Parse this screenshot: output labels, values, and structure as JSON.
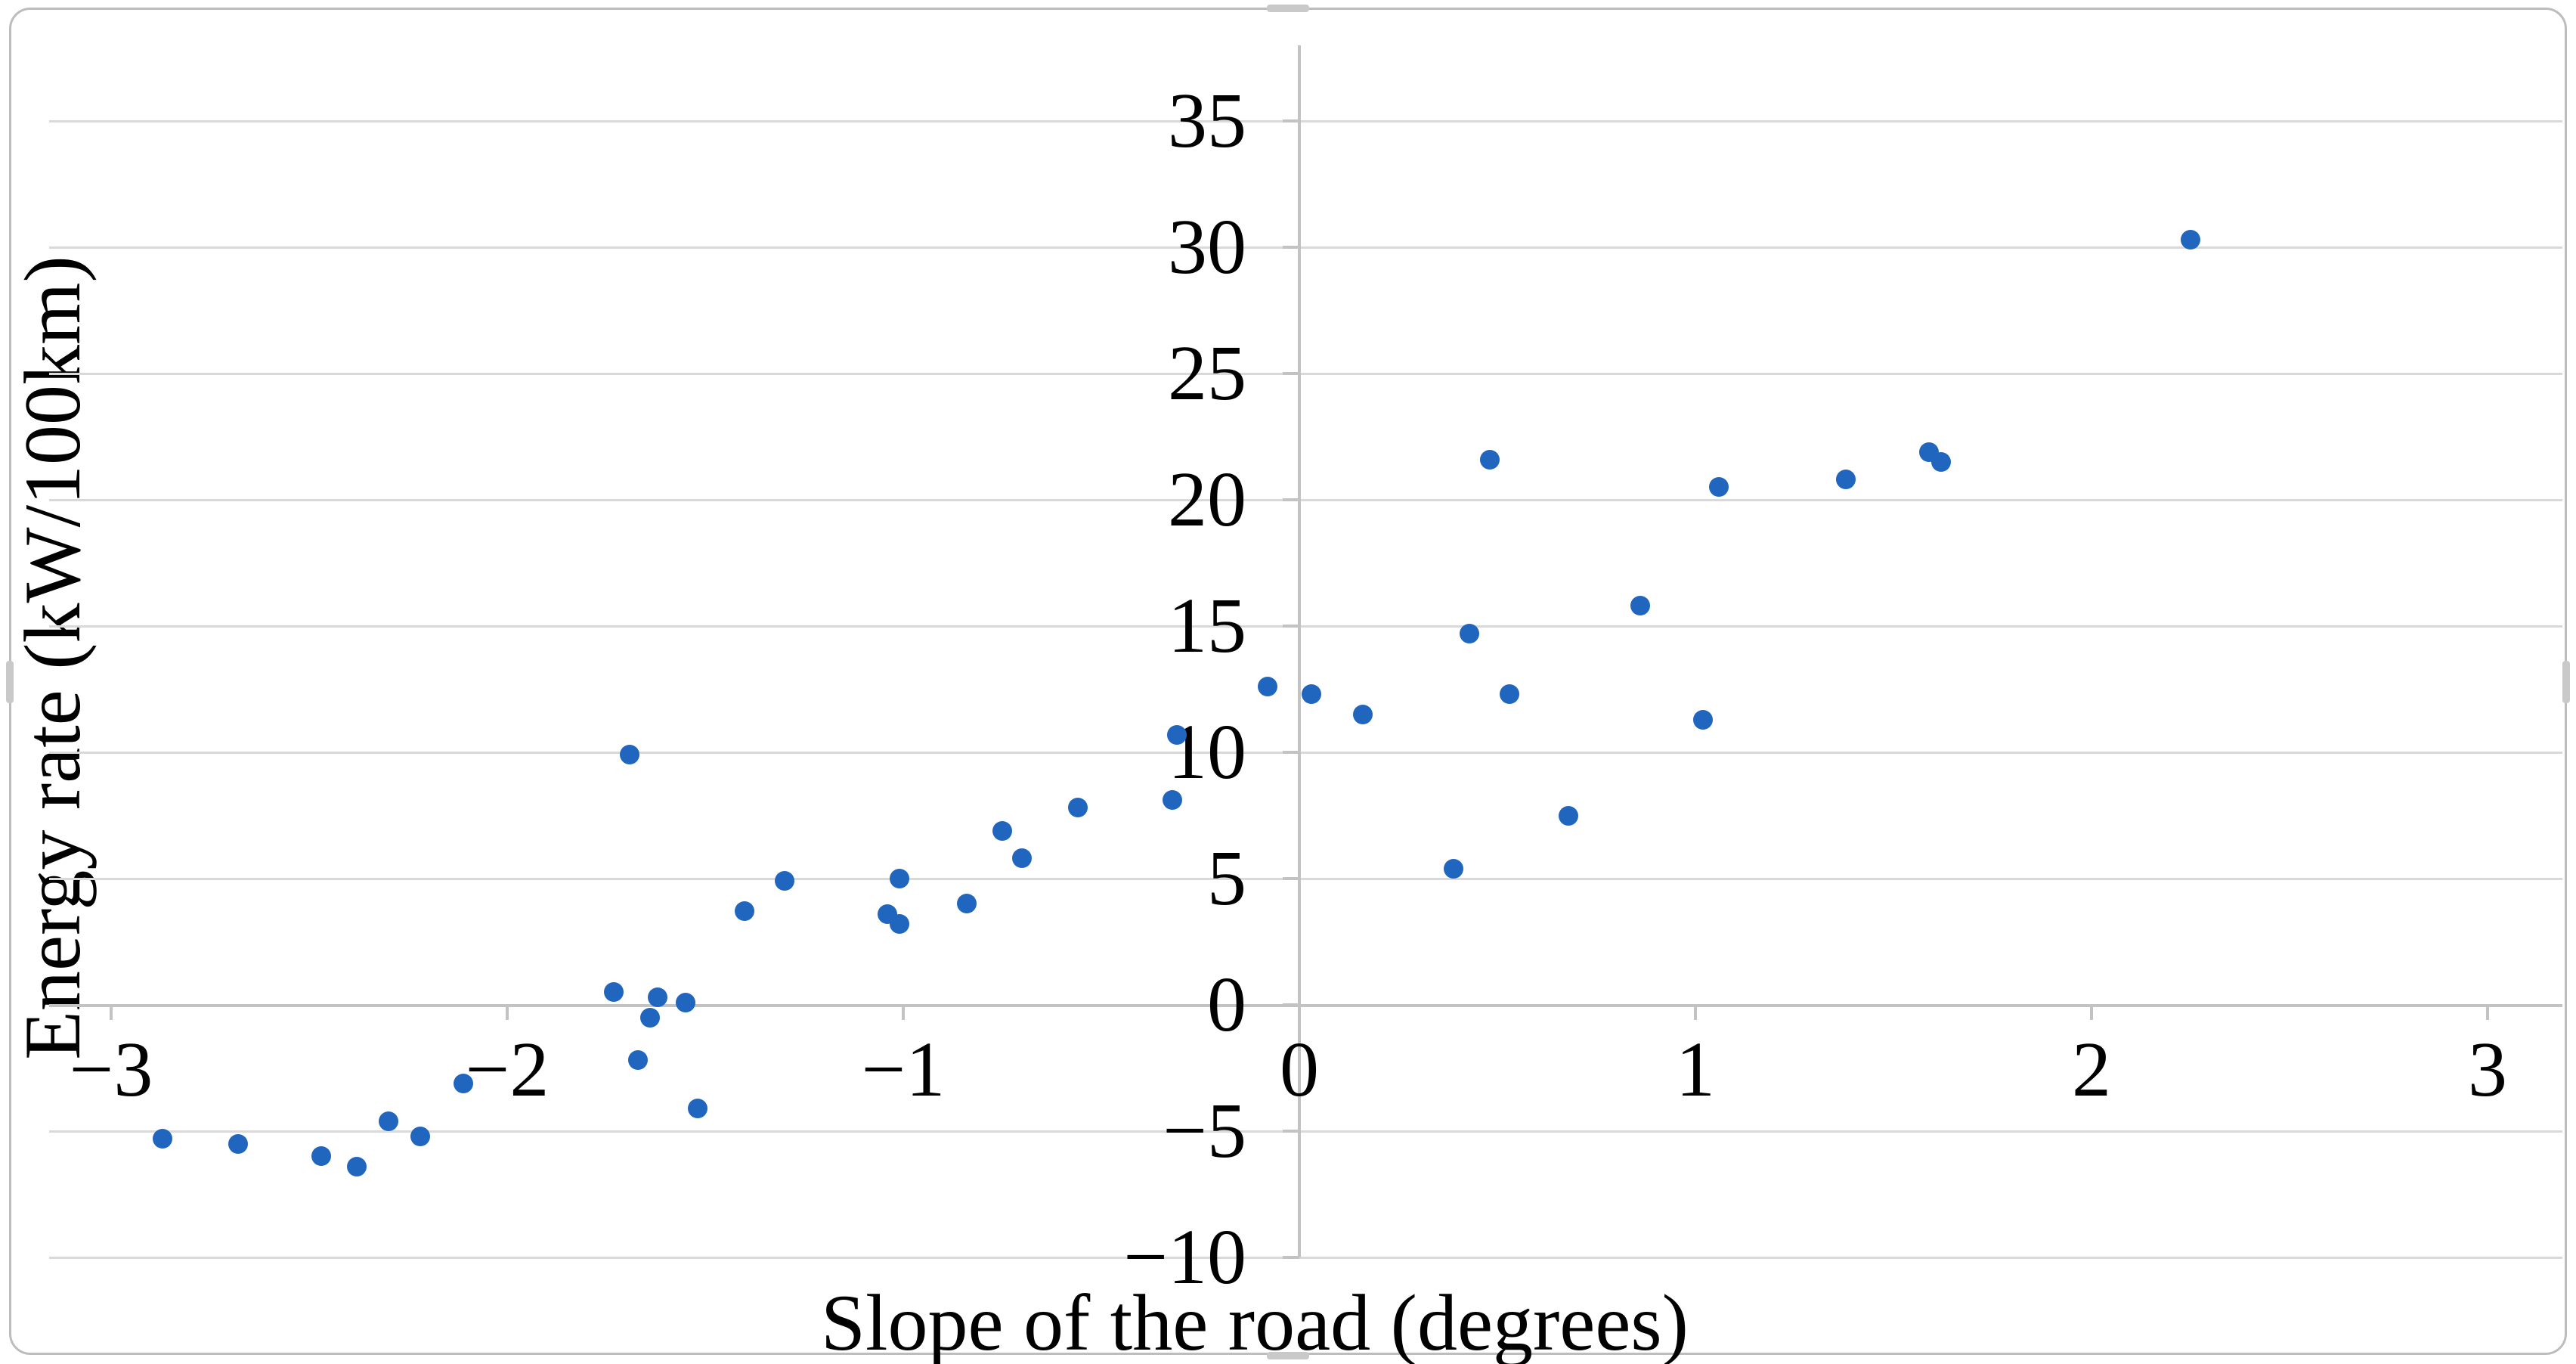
{
  "figure": {
    "background": "#ffffff",
    "frame_border_color": "#bdbdbd"
  },
  "chart_data": {
    "type": "scatter",
    "title": "",
    "xlabel": "Slope of the road (degrees)",
    "ylabel": "Energy rate (kW/100km)",
    "xlim": [
      -3,
      3
    ],
    "ylim": [
      -10,
      35
    ],
    "grid": "horizontal-only",
    "legend_position": "none",
    "marker": "filled-circle",
    "point_color": "#2166be",
    "gridline_color": "#d9d9d9",
    "axis_color": "#c3c3c3",
    "label_color": "#000000",
    "x_ticks": [
      {
        "value": -3,
        "label": "−3"
      },
      {
        "value": -2,
        "label": "−2"
      },
      {
        "value": -1,
        "label": "−1"
      },
      {
        "value": 0,
        "label": "0"
      },
      {
        "value": 1,
        "label": "1"
      },
      {
        "value": 2,
        "label": "2"
      },
      {
        "value": 3,
        "label": "3"
      }
    ],
    "y_ticks": [
      {
        "value": 35,
        "label": "35"
      },
      {
        "value": 30,
        "label": "30"
      },
      {
        "value": 25,
        "label": "25"
      },
      {
        "value": 20,
        "label": "20"
      },
      {
        "value": 15,
        "label": "15"
      },
      {
        "value": 10,
        "label": "10"
      },
      {
        "value": 5,
        "label": "5"
      },
      {
        "value": 0,
        "label": "0"
      },
      {
        "value": -5,
        "label": "−5"
      },
      {
        "value": -10,
        "label": "−10"
      }
    ],
    "points": [
      [
        -2.87,
        -5.3
      ],
      [
        -2.68,
        -5.5
      ],
      [
        -2.47,
        -6.0
      ],
      [
        -2.38,
        -6.4
      ],
      [
        -2.3,
        -4.6
      ],
      [
        -2.22,
        -5.2
      ],
      [
        -2.11,
        -3.1
      ],
      [
        -1.73,
        0.5
      ],
      [
        -1.69,
        9.9
      ],
      [
        -1.67,
        -2.2
      ],
      [
        -1.64,
        -0.5
      ],
      [
        -1.62,
        0.3
      ],
      [
        -1.55,
        0.1
      ],
      [
        -1.52,
        -4.1
      ],
      [
        -1.4,
        3.7
      ],
      [
        -1.3,
        4.9
      ],
      [
        -1.04,
        3.6
      ],
      [
        -1.01,
        5.0
      ],
      [
        -1.01,
        3.2
      ],
      [
        -0.84,
        4.0
      ],
      [
        -0.75,
        6.9
      ],
      [
        -0.7,
        5.8
      ],
      [
        -0.56,
        7.8
      ],
      [
        -0.32,
        8.1
      ],
      [
        -0.31,
        10.7
      ],
      [
        -0.08,
        12.6
      ],
      [
        0.03,
        12.3
      ],
      [
        0.16,
        11.5
      ],
      [
        0.39,
        5.4
      ],
      [
        0.43,
        14.7
      ],
      [
        0.48,
        21.6
      ],
      [
        0.53,
        12.3
      ],
      [
        0.68,
        7.5
      ],
      [
        0.86,
        15.8
      ],
      [
        1.02,
        11.3
      ],
      [
        1.06,
        20.5
      ],
      [
        1.38,
        20.8
      ],
      [
        1.59,
        21.9
      ],
      [
        1.62,
        21.5
      ],
      [
        2.25,
        30.3
      ]
    ]
  }
}
